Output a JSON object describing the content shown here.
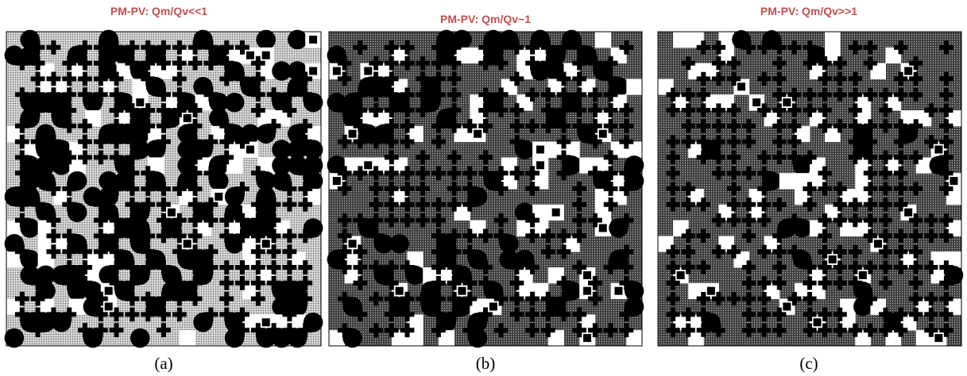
{
  "panels": [
    {
      "title": "PM-PV: Qm/Qv<<1",
      "caption": "(a)"
    },
    {
      "title": "PM-PV: Qm/Qv~1",
      "caption": "(b)"
    },
    {
      "title": "PM-PV: Qm/Qv>>1",
      "caption": "(c)"
    }
  ]
}
